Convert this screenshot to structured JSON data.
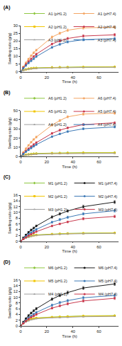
{
  "chart_data": [
    {
      "type": "line",
      "title": "(A)",
      "x_label": "Time (h)",
      "y_label": "Swelling ratio (g/g)",
      "grid": false,
      "legend": "top",
      "x": [
        0,
        2,
        4,
        6,
        8,
        10,
        12,
        24,
        30,
        36,
        48,
        72
      ],
      "xlim": [
        0,
        75
      ],
      "xticks": [
        0,
        20,
        40,
        60
      ],
      "ylim": [
        0,
        30
      ],
      "yticks": [
        0,
        5,
        10,
        15,
        20,
        25,
        30
      ],
      "series": [
        {
          "name": "A1 (pH1.2)",
          "color": "#8dc63f",
          "marker": "diamond",
          "values": [
            0,
            1.0,
            1.5,
            1.9,
            2.2,
            2.4,
            2.5,
            2.8,
            2.9,
            3.0,
            3.1,
            3.2
          ]
        },
        {
          "name": "A1 (pH7.4)",
          "color": "#f4a460",
          "marker": "circle",
          "values": [
            0,
            3.2,
            5.8,
            8.2,
            10.4,
            12.3,
            14.0,
            22.5,
            25.0,
            27.0,
            28.5,
            29.0
          ],
          "errors": [
            0,
            0.3,
            0.4,
            0.5,
            0.5,
            0.6,
            0.6,
            0.7,
            0.7,
            0.8,
            0.8,
            0.9
          ]
        },
        {
          "name": "A2 (pH1.2)",
          "color": "#f2c500",
          "marker": "square",
          "values": [
            0,
            0.9,
            1.4,
            1.7,
            2.0,
            2.2,
            2.3,
            2.6,
            2.7,
            2.8,
            2.9,
            3.0
          ]
        },
        {
          "name": "A2 (pH7.4)",
          "color": "#c8374b",
          "marker": "circle",
          "values": [
            0,
            2.6,
            4.7,
            6.6,
            8.3,
            9.9,
            11.4,
            18.0,
            20.0,
            21.6,
            23.2,
            24.0
          ],
          "errors": [
            0,
            0.3,
            0.4,
            0.4,
            0.5,
            0.5,
            0.6,
            0.6,
            0.7,
            0.7,
            0.8,
            0.8
          ]
        },
        {
          "name": "A3 (pH1.2)",
          "color": "#9e9e9e",
          "marker": "triangle-up",
          "values": [
            0,
            0.8,
            1.3,
            1.6,
            1.8,
            2.0,
            2.1,
            2.4,
            2.5,
            2.6,
            2.7,
            2.8
          ]
        },
        {
          "name": "A3 (pH7.4)",
          "color": "#3b78b5",
          "marker": "circle",
          "values": [
            0,
            2.1,
            4.0,
            5.6,
            7.0,
            8.4,
            9.8,
            15.8,
            17.8,
            19.4,
            20.8,
            21.5
          ],
          "errors": [
            0,
            0.3,
            0.3,
            0.4,
            0.4,
            0.5,
            0.5,
            0.6,
            0.6,
            0.7,
            0.7,
            0.8
          ]
        }
      ]
    },
    {
      "type": "line",
      "title": "(B)",
      "x_label": "Time (h)",
      "y_label": "Swelling ratio (g/g)",
      "grid": false,
      "legend": "top",
      "x": [
        0,
        2,
        4,
        6,
        8,
        10,
        12,
        24,
        30,
        36,
        48,
        72
      ],
      "xlim": [
        0,
        75
      ],
      "xticks": [
        0,
        20,
        40,
        60
      ],
      "ylim": [
        0,
        50
      ],
      "yticks": [
        0,
        10,
        20,
        30,
        40,
        50
      ],
      "series": [
        {
          "name": "A6 (pH1.2)",
          "color": "#8dc63f",
          "marker": "diamond",
          "values": [
            0,
            1.2,
            1.8,
            2.3,
            2.7,
            3.0,
            3.2,
            3.6,
            3.8,
            3.9,
            4.1,
            4.2
          ]
        },
        {
          "name": "A6 (pH7.4)",
          "color": "#f4a460",
          "marker": "circle",
          "values": [
            0,
            4.5,
            8.5,
            12.0,
            15.5,
            18.5,
            21.0,
            34.0,
            39.0,
            43.0,
            46.0,
            47.0
          ],
          "errors": [
            0,
            0.5,
            0.6,
            0.7,
            0.8,
            0.8,
            0.9,
            1.0,
            1.1,
            1.1,
            1.2,
            1.2
          ]
        },
        {
          "name": "A5 (pH1.2)",
          "color": "#f2c500",
          "marker": "square",
          "values": [
            0,
            1.0,
            1.6,
            2.0,
            2.3,
            2.6,
            2.8,
            3.2,
            3.4,
            3.5,
            3.7,
            3.8
          ]
        },
        {
          "name": "A5 (pH7.4)",
          "color": "#c8374b",
          "marker": "circle",
          "values": [
            0,
            3.2,
            6.0,
            8.5,
            10.8,
            13.0,
            15.0,
            25.0,
            28.5,
            31.0,
            34.5,
            36.5
          ],
          "errors": [
            0,
            0.4,
            0.5,
            0.6,
            0.7,
            0.7,
            0.8,
            0.9,
            1.0,
            1.0,
            1.1,
            1.1
          ]
        },
        {
          "name": "A4 (pH1.2)",
          "color": "#9e9e9e",
          "marker": "triangle-up",
          "values": [
            0,
            0.9,
            1.4,
            1.8,
            2.1,
            2.3,
            2.5,
            2.9,
            3.0,
            3.1,
            3.2,
            3.3
          ]
        },
        {
          "name": "A4 (pH7.4)",
          "color": "#3b78b5",
          "marker": "circle",
          "values": [
            0,
            2.6,
            5.0,
            7.0,
            9.0,
            11.0,
            12.8,
            21.5,
            24.5,
            27.0,
            30.0,
            32.0
          ],
          "errors": [
            0,
            0.4,
            0.5,
            0.5,
            0.6,
            0.7,
            0.7,
            0.8,
            0.9,
            0.9,
            1.0,
            1.0
          ]
        }
      ]
    },
    {
      "type": "line",
      "title": "(C)",
      "x_label": "Time (h)",
      "y_label": "Swelling ratio (g/g)",
      "grid": false,
      "legend": "top",
      "x": [
        0,
        2,
        4,
        6,
        8,
        10,
        12,
        24,
        30,
        36,
        48,
        72
      ],
      "xlim": [
        0,
        75
      ],
      "xticks": [
        0,
        20,
        40,
        60
      ],
      "ylim": [
        0,
        16
      ],
      "yticks": [
        0,
        2,
        4,
        6,
        8,
        10,
        12,
        14,
        16
      ],
      "series": [
        {
          "name": "M1 (pH1.2)",
          "color": "#8dc63f",
          "marker": "diamond",
          "values": [
            0,
            0.9,
            1.3,
            1.6,
            1.9,
            2.1,
            2.2,
            2.5,
            2.6,
            2.7,
            2.8,
            2.9
          ]
        },
        {
          "name": "M1 (pH7.4)",
          "color": "#1a1a1a",
          "marker": "circle",
          "values": [
            0,
            1.2,
            2.2,
            3.1,
            3.9,
            4.6,
            5.3,
            8.4,
            9.5,
            10.5,
            12.0,
            13.6
          ],
          "errors": [
            0,
            0.2,
            0.2,
            0.3,
            0.3,
            0.3,
            0.3,
            0.4,
            0.4,
            0.4,
            0.5,
            0.5
          ]
        },
        {
          "name": "M2 (pH1.2)",
          "color": "#f2c500",
          "marker": "square",
          "values": [
            0,
            0.8,
            1.2,
            1.5,
            1.8,
            2.0,
            2.1,
            2.4,
            2.5,
            2.6,
            2.7,
            2.8
          ]
        },
        {
          "name": "M2 (pH7.4)",
          "color": "#3b78b5",
          "marker": "circle",
          "values": [
            0,
            0.9,
            1.7,
            2.4,
            3.0,
            3.6,
            4.1,
            6.6,
            7.5,
            8.3,
            9.5,
            10.6
          ],
          "errors": [
            0,
            0.1,
            0.2,
            0.2,
            0.2,
            0.3,
            0.3,
            0.3,
            0.4,
            0.4,
            0.4,
            0.5
          ]
        },
        {
          "name": "M3 (pH1.2)",
          "color": "#9e9e9e",
          "marker": "triangle-up",
          "values": [
            0,
            0.7,
            1.1,
            1.4,
            1.7,
            1.9,
            2.0,
            2.3,
            2.4,
            2.5,
            2.6,
            2.7
          ]
        },
        {
          "name": "M3 (pH7.4)",
          "color": "#c8374b",
          "marker": "circle",
          "values": [
            0,
            0.7,
            1.3,
            1.9,
            2.4,
            2.9,
            3.3,
            5.3,
            6.0,
            6.7,
            7.8,
            8.6
          ],
          "errors": [
            0,
            0.1,
            0.1,
            0.2,
            0.2,
            0.2,
            0.2,
            0.3,
            0.3,
            0.3,
            0.4,
            0.4
          ]
        }
      ]
    },
    {
      "type": "line",
      "title": "(D)",
      "x_label": "Time (h)",
      "y_label": "Swelling ratio (g/g)",
      "grid": false,
      "legend": "top",
      "x": [
        0,
        2,
        4,
        6,
        8,
        10,
        12,
        24,
        30,
        36,
        48,
        72
      ],
      "xlim": [
        0,
        75
      ],
      "xticks": [
        0,
        20,
        40,
        60
      ],
      "ylim": [
        0,
        16
      ],
      "yticks": [
        0,
        2,
        4,
        6,
        8,
        10,
        12,
        14,
        16
      ],
      "series": [
        {
          "name": "M6 (pH1.2)",
          "color": "#8dc63f",
          "marker": "diamond",
          "values": [
            0,
            1.1,
            1.7,
            2.1,
            2.4,
            2.6,
            2.8,
            3.1,
            3.2,
            3.3,
            3.5,
            3.6
          ]
        },
        {
          "name": "M6 (pH7.4)",
          "color": "#1a1a1a",
          "marker": "circle",
          "values": [
            0,
            1.4,
            2.6,
            3.6,
            4.5,
            5.3,
            6.0,
            9.3,
            10.6,
            11.6,
            13.2,
            14.6
          ],
          "errors": [
            0,
            0.2,
            0.2,
            0.3,
            0.3,
            0.3,
            0.4,
            0.4,
            0.4,
            0.5,
            0.5,
            0.5
          ]
        },
        {
          "name": "M5 (pH1.2)",
          "color": "#f2c500",
          "marker": "square",
          "values": [
            0,
            1.0,
            1.6,
            2.0,
            2.3,
            2.5,
            2.7,
            3.0,
            3.1,
            3.2,
            3.4,
            3.5
          ]
        },
        {
          "name": "M5 (pH7.4)",
          "color": "#3b78b5",
          "marker": "circle",
          "values": [
            0,
            1.1,
            2.0,
            2.8,
            3.5,
            4.1,
            4.7,
            7.2,
            8.1,
            8.8,
            9.8,
            10.6
          ],
          "errors": [
            0,
            0.2,
            0.2,
            0.2,
            0.3,
            0.3,
            0.3,
            0.4,
            0.4,
            0.4,
            0.5,
            0.5
          ]
        },
        {
          "name": "M4 (pH1.2)",
          "color": "#9e9e9e",
          "marker": "triangle-up",
          "values": [
            0,
            0.9,
            1.4,
            1.8,
            2.1,
            2.3,
            2.5,
            2.8,
            2.9,
            3.0,
            3.2,
            3.3
          ]
        },
        {
          "name": "M4 (pH7.4)",
          "color": "#c8374b",
          "marker": "circle",
          "values": [
            0,
            0.9,
            1.7,
            2.4,
            3.0,
            3.5,
            4.0,
            6.2,
            7.0,
            7.7,
            8.7,
            9.6
          ],
          "errors": [
            0,
            0.1,
            0.2,
            0.2,
            0.2,
            0.3,
            0.3,
            0.3,
            0.3,
            0.4,
            0.4,
            0.4
          ]
        }
      ]
    }
  ]
}
